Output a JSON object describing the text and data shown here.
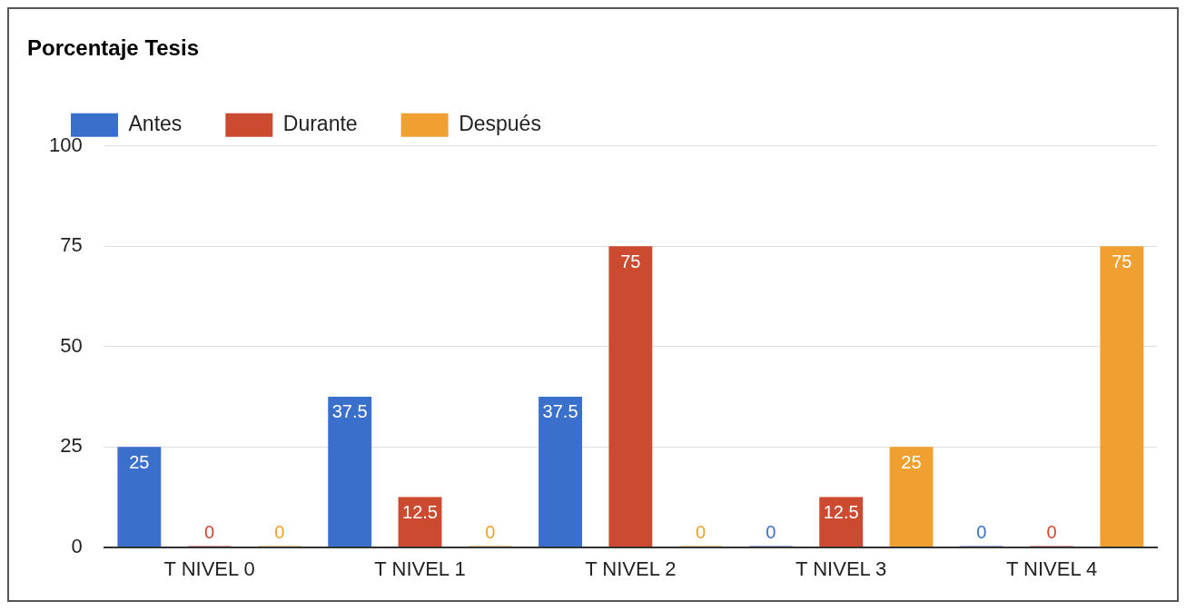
{
  "chart_data": {
    "type": "bar",
    "title": "Porcentaje Tesis",
    "categories": [
      "T NIVEL 0",
      "T NIVEL 1",
      "T NIVEL 2",
      "T NIVEL 3",
      "T NIVEL 4"
    ],
    "series": [
      {
        "name": "Antes",
        "color": "#3a6fcc",
        "values": [
          25,
          37.5,
          37.5,
          0,
          0
        ]
      },
      {
        "name": "Durante",
        "color": "#cc4a30",
        "values": [
          0,
          12.5,
          75,
          12.5,
          0
        ]
      },
      {
        "name": "Después",
        "color": "#f0a030",
        "values": [
          0,
          0,
          0,
          25,
          75
        ]
      }
    ],
    "ylim": [
      0,
      100
    ],
    "yticks": [
      0,
      25,
      50,
      75,
      100
    ],
    "grid": "y",
    "legend": "top left",
    "data_labels": true
  }
}
